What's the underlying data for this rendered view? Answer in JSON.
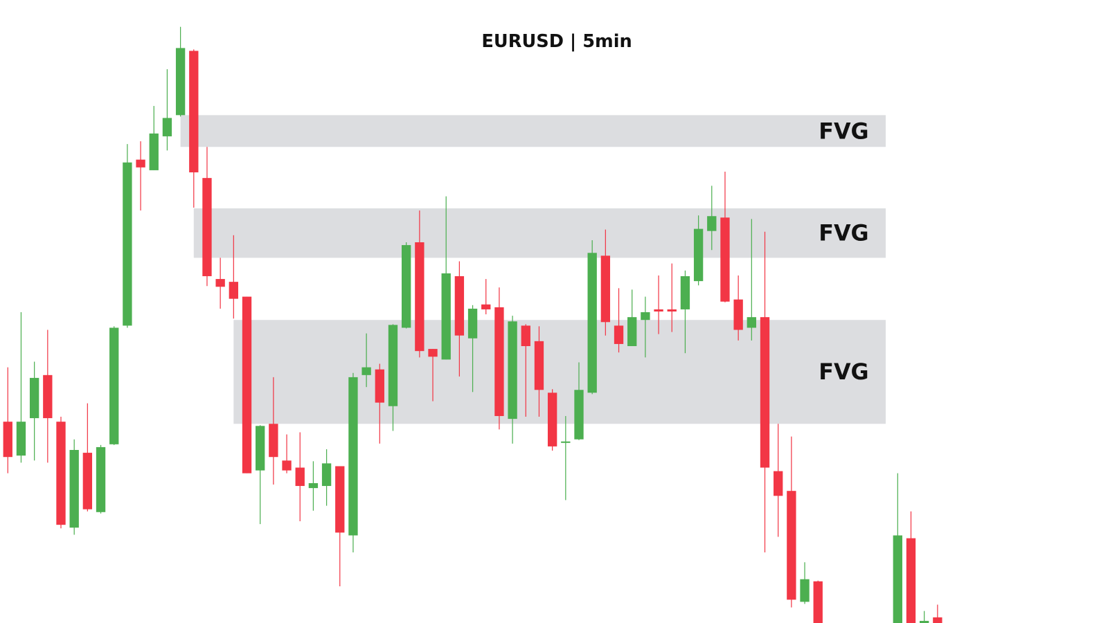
{
  "chart_data": {
    "type": "candlestick",
    "title": "EURUSD | 5min",
    "ylim": [
      0,
      882
    ],
    "up_color": "#4caf50",
    "down_color": "#f23645",
    "zone_color": "#dcdde0",
    "open": [
      285,
      237,
      290,
      351,
      285,
      135,
      241,
      157,
      253,
      421,
      656,
      641,
      689,
      719,
      810,
      630,
      487,
      483,
      462,
      216,
      282,
      230,
      220,
      191,
      194,
      222,
      124,
      351,
      359,
      307,
      418,
      539,
      388,
      373,
      491,
      403,
      451,
      447,
      289,
      421,
      399,
      326,
      255,
      260,
      326,
      520,
      421,
      392,
      429,
      444,
      444,
      444,
      484,
      555,
      574,
      458,
      418,
      433,
      215,
      187,
      30,
      59,
      null,
      null,
      null,
      null,
      null,
      0,
      120,
      0,
      8
    ],
    "high": [
      362,
      440,
      370,
      415,
      292,
      260,
      311,
      252,
      420,
      678,
      682,
      732,
      784,
      844,
      812,
      674,
      517,
      549,
      462,
      280,
      348,
      267,
      270,
      229,
      246,
      222,
      354,
      410,
      367,
      423,
      539,
      584,
      388,
      604,
      512,
      450,
      487,
      475,
      435,
      423,
      420,
      331,
      293,
      369,
      542,
      557,
      474,
      472,
      462,
      492,
      509,
      499,
      577,
      619,
      639,
      492,
      572,
      554,
      282,
      264,
      86,
      60,
      null,
      null,
      null,
      null,
      null,
      212,
      158,
      17,
      26
    ],
    "low": [
      212,
      227,
      230,
      227,
      134,
      125,
      158,
      155,
      252,
      418,
      584,
      641,
      669,
      717,
      588,
      477,
      445,
      431,
      212,
      140,
      196,
      212,
      144,
      159,
      166,
      52,
      100,
      334,
      254,
      272,
      417,
      376,
      314,
      373,
      349,
      327,
      437,
      274,
      254,
      292,
      292,
      244,
      174,
      259,
      324,
      407,
      383,
      392,
      376,
      409,
      412,
      382,
      478,
      528,
      454,
      400,
      400,
      100,
      122,
      22,
      27,
      0,
      null,
      null,
      null,
      null,
      null,
      0,
      0,
      0,
      0
    ],
    "close": [
      235,
      285,
      347,
      290,
      139,
      245,
      161,
      249,
      418,
      652,
      645,
      693,
      715,
      814,
      638,
      491,
      476,
      459,
      212,
      279,
      235,
      216,
      194,
      198,
      226,
      128,
      348,
      362,
      312,
      422,
      535,
      385,
      377,
      495,
      407,
      445,
      444,
      293,
      427,
      392,
      330,
      250,
      257,
      330,
      524,
      426,
      395,
      433,
      440,
      441,
      441,
      491,
      558,
      576,
      455,
      415,
      433,
      220,
      180,
      33,
      62,
      0,
      null,
      null,
      null,
      null,
      null,
      124,
      0,
      3,
      0
    ],
    "zones": [
      {
        "label": "FVG",
        "from": 13,
        "top": 719,
        "bottom": 674
      },
      {
        "label": "FVG",
        "from": 14,
        "top": 587,
        "bottom": 517
      },
      {
        "label": "FVG",
        "from": 17,
        "top": 429,
        "bottom": 282
      }
    ]
  }
}
